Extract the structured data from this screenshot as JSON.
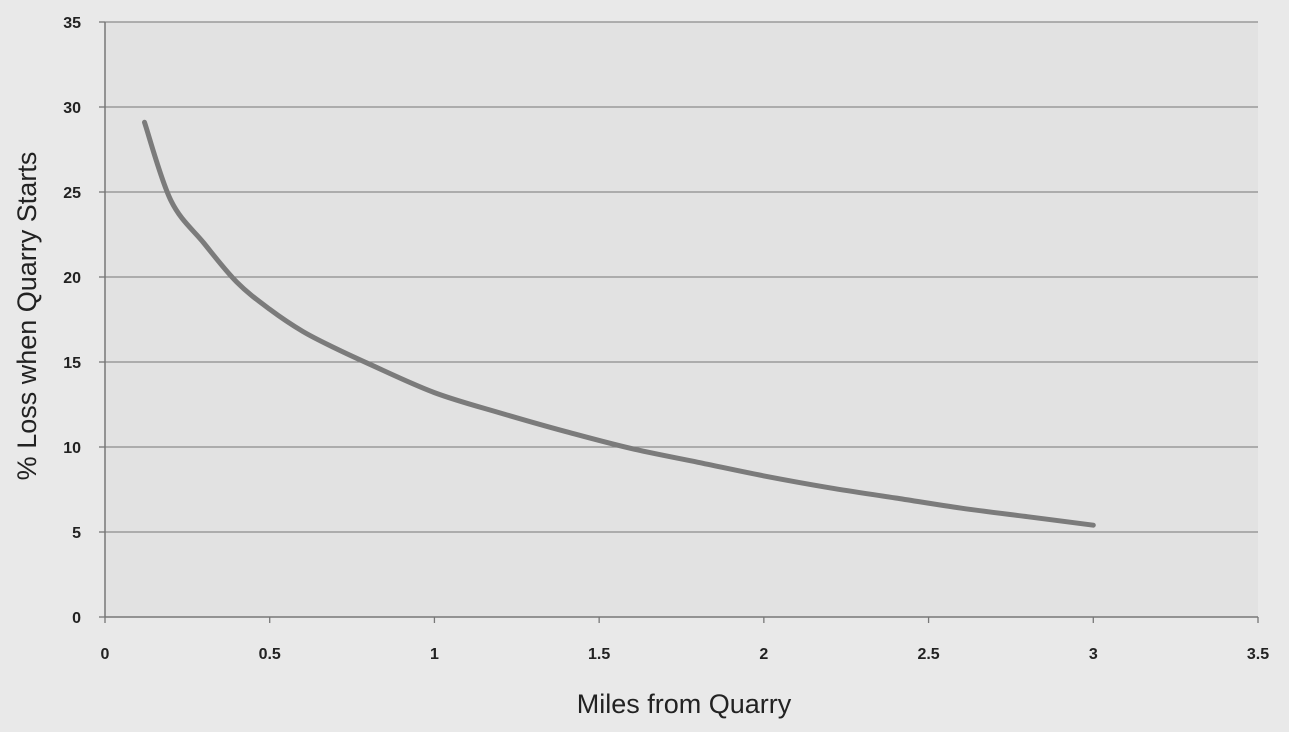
{
  "chart_data": {
    "type": "line",
    "title": "",
    "xlabel": "Miles from Quarry",
    "ylabel": "% Loss when Quarry Starts",
    "xlim": [
      0,
      3.5
    ],
    "ylim": [
      0,
      35
    ],
    "xticks": [
      0,
      0.5,
      1,
      1.5,
      2,
      2.5,
      3,
      3.5
    ],
    "xtick_labels": [
      "0",
      "0.5",
      "1",
      "1.5",
      "2",
      "2.5",
      "3",
      "3.5"
    ],
    "yticks": [
      0,
      5,
      10,
      15,
      20,
      25,
      30,
      35
    ],
    "ytick_labels": [
      "0",
      "5",
      "10",
      "15",
      "20",
      "25",
      "30",
      "35"
    ],
    "grid": "horizontal",
    "legend": "none",
    "series": [
      {
        "color": "#7b7b7b",
        "x": [
          0.12,
          0.2,
          0.3,
          0.4,
          0.5,
          0.6,
          0.7,
          0.8,
          1.0,
          1.2,
          1.4,
          1.6,
          1.8,
          2.0,
          2.2,
          2.4,
          2.6,
          2.8,
          3.0
        ],
        "y": [
          29.1,
          24.5,
          22.0,
          19.7,
          18.1,
          16.8,
          15.8,
          14.9,
          13.2,
          12.0,
          10.9,
          9.9,
          9.1,
          8.3,
          7.6,
          7.0,
          6.4,
          5.9,
          5.4
        ]
      }
    ]
  }
}
